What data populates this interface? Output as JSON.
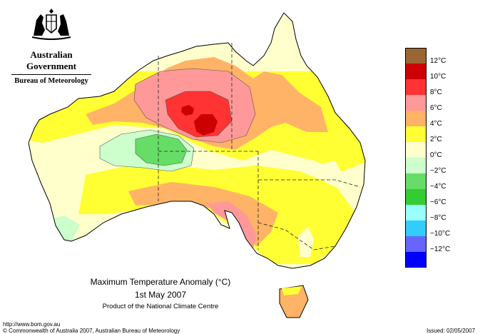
{
  "agency": {
    "government": "Australian Government",
    "bureau": "Bureau of Meteorology"
  },
  "title": {
    "line1": "Maximum Temperature Anomaly (°C)",
    "line2": "1st May 2007",
    "line3": "Product of the National Climate Centre"
  },
  "legend": [
    {
      "color": "#996633",
      "label": "12°C"
    },
    {
      "color": "#cc0000",
      "label": "10°C"
    },
    {
      "color": "#ff3333",
      "label": "8°C"
    },
    {
      "color": "#ff9999",
      "label": "6°C"
    },
    {
      "color": "#ffb366",
      "label": "4°C"
    },
    {
      "color": "#ffff33",
      "label": "2°C"
    },
    {
      "color": "#ffffcc",
      "label": "0°C"
    },
    {
      "color": "#ccffcc",
      "label": "−2°C"
    },
    {
      "color": "#66dd66",
      "label": "−4°C"
    },
    {
      "color": "#33cc33",
      "label": "−6°C"
    },
    {
      "color": "#99ffff",
      "label": "−8°C"
    },
    {
      "color": "#33ccff",
      "label": "−10°C"
    },
    {
      "color": "#6666ff",
      "label": "−12°C"
    },
    {
      "color": "#0000ff",
      "label": ""
    }
  ],
  "footer": {
    "url": "http://www.bom.gov.au",
    "copyright": "© Commonwealth of Australia 2007, Australian Bureau of Meteorology",
    "issued": "Issued: 02/05/2007"
  }
}
